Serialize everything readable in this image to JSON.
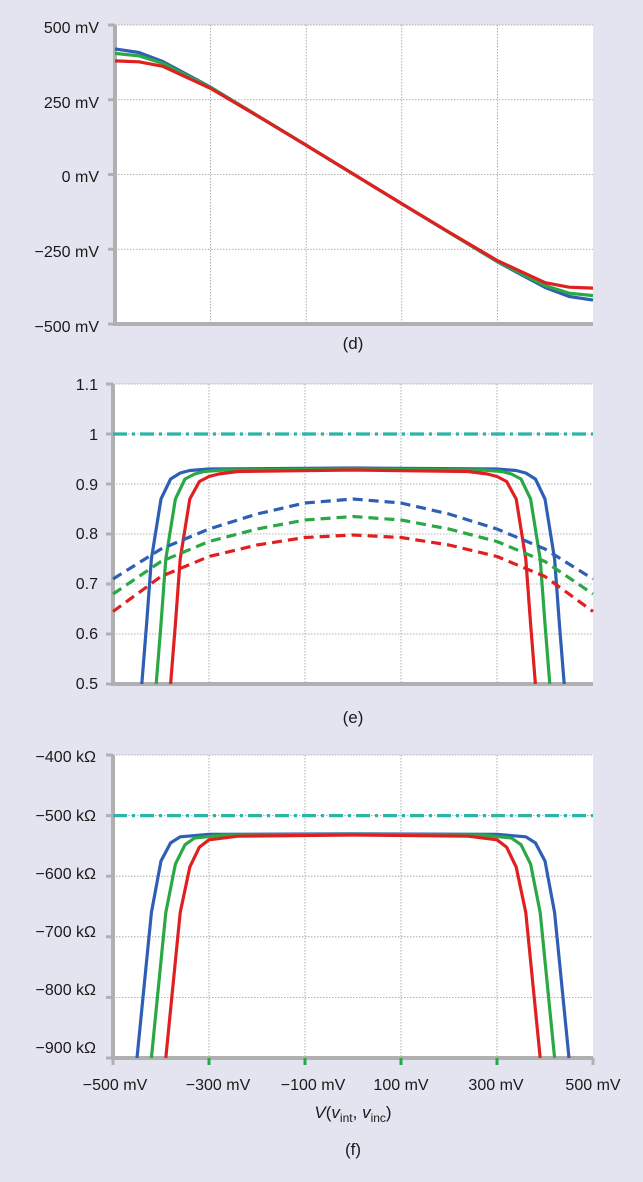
{
  "chart_data": [
    {
      "id": "d",
      "type": "line",
      "panel_label": "(d)",
      "xlim": [
        -500,
        500
      ],
      "ylim": [
        -500,
        500
      ],
      "yticks": [
        500,
        250,
        0,
        -250,
        -500
      ],
      "ytick_labels": [
        "500 mV",
        "250 mV",
        "0 mV",
        "−250 mV",
        "−500 mV"
      ],
      "xgrid": [
        -300,
        -100,
        100,
        300
      ],
      "series": [
        {
          "color": "#2e5fb5",
          "style": "solid",
          "x": [
            -500,
            -450,
            -400,
            -300,
            -200,
            -100,
            0,
            100,
            200,
            300,
            400,
            450,
            500
          ],
          "y": [
            420,
            408,
            378,
            292,
            195,
            98,
            0,
            -98,
            -195,
            -292,
            -378,
            -408,
            -420
          ]
        },
        {
          "color": "#2aa845",
          "style": "solid",
          "x": [
            -500,
            -450,
            -400,
            -300,
            -200,
            -100,
            0,
            100,
            200,
            300,
            400,
            450,
            500
          ],
          "y": [
            405,
            397,
            372,
            291,
            195,
            98,
            0,
            -98,
            -195,
            -291,
            -372,
            -397,
            -405
          ]
        },
        {
          "color": "#e02020",
          "style": "solid",
          "x": [
            -500,
            -450,
            -400,
            -300,
            -200,
            -100,
            0,
            100,
            200,
            300,
            400,
            450,
            500
          ],
          "y": [
            380,
            377,
            362,
            288,
            194,
            98,
            0,
            -98,
            -194,
            -288,
            -362,
            -377,
            -380
          ]
        }
      ]
    },
    {
      "id": "e",
      "type": "line",
      "panel_label": "(e)",
      "xlim": [
        -500,
        500
      ],
      "ylim": [
        0.5,
        1.1
      ],
      "yticks": [
        1.1,
        1,
        0.9,
        0.8,
        0.7,
        0.6,
        0.5
      ],
      "ytick_labels": [
        "1.1",
        "1",
        "0.9",
        "0.8",
        "0.7",
        "0.6",
        "0.5"
      ],
      "xgrid": [
        -300,
        -100,
        100,
        300
      ],
      "series": [
        {
          "color": "#2ab5a8",
          "style": "dashdot",
          "x": [
            -500,
            500
          ],
          "y": [
            1.0,
            1.0
          ]
        },
        {
          "color": "#2e5fb5",
          "style": "solid",
          "x": [
            -440,
            -430,
            -420,
            -400,
            -380,
            -360,
            -340,
            -300,
            0,
            300,
            340,
            360,
            380,
            400,
            420,
            430,
            440
          ],
          "y": [
            0.5,
            0.62,
            0.75,
            0.87,
            0.91,
            0.922,
            0.927,
            0.93,
            0.932,
            0.93,
            0.927,
            0.922,
            0.91,
            0.87,
            0.75,
            0.62,
            0.5
          ]
        },
        {
          "color": "#2aa845",
          "style": "solid",
          "x": [
            -410,
            -400,
            -390,
            -370,
            -350,
            -330,
            -310,
            -270,
            0,
            270,
            310,
            330,
            350,
            370,
            390,
            400,
            410
          ],
          "y": [
            0.5,
            0.62,
            0.75,
            0.87,
            0.91,
            0.92,
            0.925,
            0.928,
            0.93,
            0.928,
            0.925,
            0.92,
            0.91,
            0.87,
            0.75,
            0.62,
            0.5
          ]
        },
        {
          "color": "#e02020",
          "style": "solid",
          "x": [
            -380,
            -370,
            -360,
            -340,
            -320,
            -300,
            -280,
            -240,
            0,
            240,
            280,
            300,
            320,
            340,
            360,
            370,
            380
          ],
          "y": [
            0.5,
            0.62,
            0.75,
            0.87,
            0.905,
            0.915,
            0.92,
            0.925,
            0.928,
            0.925,
            0.92,
            0.915,
            0.905,
            0.87,
            0.75,
            0.62,
            0.5
          ]
        },
        {
          "color": "#2e5fb5",
          "style": "dashed",
          "x": [
            -500,
            -400,
            -300,
            -200,
            -100,
            0,
            100,
            200,
            300,
            400,
            500
          ],
          "y": [
            0.71,
            0.77,
            0.81,
            0.84,
            0.862,
            0.87,
            0.862,
            0.84,
            0.81,
            0.77,
            0.71
          ]
        },
        {
          "color": "#2aa845",
          "style": "dashed",
          "x": [
            -500,
            -400,
            -300,
            -200,
            -100,
            0,
            100,
            200,
            300,
            400,
            500
          ],
          "y": [
            0.68,
            0.745,
            0.785,
            0.81,
            0.828,
            0.835,
            0.828,
            0.81,
            0.785,
            0.745,
            0.68
          ]
        },
        {
          "color": "#e02020",
          "style": "dashed",
          "x": [
            -500,
            -400,
            -300,
            -200,
            -100,
            0,
            100,
            200,
            300,
            400,
            500
          ],
          "y": [
            0.645,
            0.715,
            0.755,
            0.778,
            0.793,
            0.798,
            0.793,
            0.778,
            0.755,
            0.715,
            0.645
          ]
        }
      ]
    },
    {
      "id": "f",
      "type": "line",
      "panel_label": "(f)",
      "xlabel": "V(v_int, v_inc)",
      "xlabel_parts": {
        "v": "V",
        "open": "(",
        "v1": "v",
        "s1": "int",
        "sep": ", ",
        "v2": "v",
        "s2": "inc",
        "close": ")"
      },
      "xlim": [
        -500,
        500
      ],
      "ylim": [
        -900,
        -400
      ],
      "yticks": [
        -400,
        -500,
        -600,
        -700,
        -800,
        -900
      ],
      "ytick_labels": [
        "−400 kΩ",
        "−500 kΩ",
        "−600 kΩ",
        "−700 kΩ",
        "−800 kΩ",
        "−900 kΩ"
      ],
      "xticks": [
        -500,
        -300,
        -100,
        100,
        300,
        500
      ],
      "xtick_labels": [
        "−500 mV",
        "−300 mV",
        "−100 mV",
        "100 mV",
        "300 mV",
        "500 mV"
      ],
      "xgrid": [
        -300,
        -100,
        100,
        300
      ],
      "series": [
        {
          "color": "#2ab5a8",
          "style": "dashdot",
          "x": [
            -500,
            500
          ],
          "y": [
            -500,
            -500
          ]
        },
        {
          "color": "#2e5fb5",
          "style": "solid",
          "x": [
            -450,
            -440,
            -430,
            -420,
            -400,
            -380,
            -360,
            -300,
            0,
            300,
            360,
            380,
            400,
            420,
            430,
            440,
            450
          ],
          "y": [
            -900,
            -820,
            -740,
            -660,
            -575,
            -545,
            -535,
            -531,
            -530,
            -531,
            -535,
            -545,
            -575,
            -660,
            -740,
            -820,
            -900
          ]
        },
        {
          "color": "#2aa845",
          "style": "solid",
          "x": [
            -420,
            -410,
            -400,
            -390,
            -370,
            -350,
            -330,
            -270,
            0,
            270,
            330,
            350,
            370,
            390,
            400,
            410,
            420
          ],
          "y": [
            -900,
            -820,
            -740,
            -660,
            -580,
            -548,
            -537,
            -532,
            -531,
            -532,
            -537,
            -548,
            -580,
            -660,
            -740,
            -820,
            -900
          ]
        },
        {
          "color": "#e02020",
          "style": "solid",
          "x": [
            -390,
            -380,
            -370,
            -360,
            -340,
            -320,
            -300,
            -240,
            0,
            240,
            300,
            320,
            340,
            360,
            370,
            380,
            390
          ],
          "y": [
            -900,
            -820,
            -740,
            -660,
            -585,
            -552,
            -540,
            -534,
            -532,
            -534,
            -540,
            -552,
            -585,
            -660,
            -740,
            -820,
            -900
          ]
        }
      ]
    }
  ]
}
